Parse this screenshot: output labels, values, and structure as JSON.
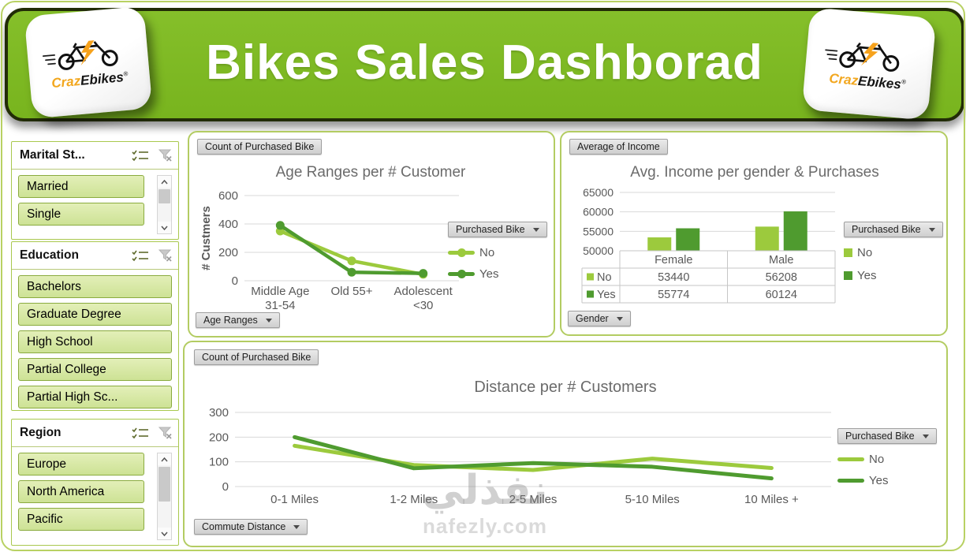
{
  "page": {
    "title_header": "Bikes Sales Dashborad",
    "watermark_line1": "نفذلي",
    "watermark_line2": "nafezly.com"
  },
  "logo": {
    "brand_part1": "Craz",
    "brand_part2": "Ebikes",
    "registered": "®"
  },
  "colors": {
    "series_no": "#9cca3d",
    "series_yes": "#4f9b2f",
    "header_green": "#7db723"
  },
  "slicers": [
    {
      "title": "Marital St...",
      "items": [
        "Married",
        "Single"
      ],
      "scrollbar": true
    },
    {
      "title": "Education",
      "items": [
        "Bachelors",
        "Graduate Degree",
        "High School",
        "Partial College",
        "Partial High Sc..."
      ],
      "scrollbar": false
    },
    {
      "title": "Region",
      "items": [
        "Europe",
        "North America",
        "Pacific"
      ],
      "scrollbar": true
    }
  ],
  "chart_data": [
    {
      "type": "line",
      "title": "Age Ranges per # Customer",
      "field_button": "Count of Purchased Bike",
      "axis_button": "Age Ranges",
      "legend_button": "Purchased Bike",
      "ylabel": "# Custmers",
      "categories": [
        [
          "Middle Age",
          "31-54"
        ],
        [
          "Old 55+"
        ],
        [
          "Adolescent",
          "<30"
        ]
      ],
      "series": [
        {
          "name": "No",
          "color": "#9cca3d",
          "values": [
            350,
            140,
            45
          ]
        },
        {
          "name": "Yes",
          "color": "#4f9b2f",
          "values": [
            390,
            60,
            52
          ]
        }
      ],
      "yticks": [
        0,
        200,
        400,
        600
      ],
      "ylim": [
        0,
        600
      ],
      "markers": true,
      "grid": true,
      "legend_position": "right"
    },
    {
      "type": "bar",
      "title": "Avg. Income per gender & Purchases",
      "field_button": "Average of Income",
      "axis_button": "Gender",
      "legend_button": "Purchased Bike",
      "categories": [
        "Female",
        "Male"
      ],
      "series": [
        {
          "name": "No",
          "color": "#9cca3d",
          "values": [
            53440,
            56208
          ]
        },
        {
          "name": "Yes",
          "color": "#4f9b2f",
          "values": [
            55774,
            60124
          ]
        }
      ],
      "yticks": [
        50000,
        55000,
        60000,
        65000
      ],
      "ylim": [
        50000,
        65000
      ],
      "data_table": true,
      "grid": true,
      "legend_position": "right"
    },
    {
      "type": "line",
      "title": "Distance per # Customers",
      "field_button": "Count of Purchased Bike",
      "axis_button": "Commute Distance",
      "legend_button": "Purchased Bike",
      "categories": [
        [
          "0-1 Miles"
        ],
        [
          "1-2 Miles"
        ],
        [
          "2-5 Miles"
        ],
        [
          "5-10 Miles"
        ],
        [
          "10 Miles +"
        ]
      ],
      "series": [
        {
          "name": "No",
          "color": "#9cca3d",
          "values": [
            165,
            87,
            67,
            113,
            75
          ]
        },
        {
          "name": "Yes",
          "color": "#4f9b2f",
          "values": [
            200,
            74,
            95,
            80,
            33
          ]
        }
      ],
      "yticks": [
        0,
        100,
        200,
        300
      ],
      "ylim": [
        0,
        300
      ],
      "markers": false,
      "grid": true,
      "legend_position": "right"
    }
  ]
}
